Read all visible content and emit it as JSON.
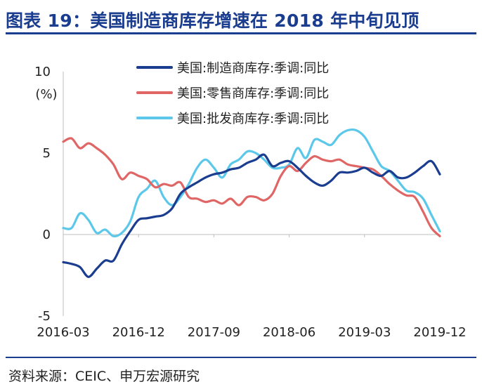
{
  "header": {
    "title": "图表 19：美国制造商库存增速在 2018 年中旬见顶"
  },
  "footer": {
    "source": "资料来源：CEIC、申万宏源研究"
  },
  "colors": {
    "title": "#1b3d8f",
    "rule": "#1b3d8f"
  },
  "chart_data": {
    "type": "line",
    "title": "",
    "ylabel": "(%)",
    "ylim": [
      -5,
      10
    ],
    "yticks": [
      10,
      5,
      0,
      -5
    ],
    "xlim": [
      0,
      45
    ],
    "x_tick_labels": [
      "2016-03",
      "2016-12",
      "2017-09",
      "2018-06",
      "2019-03",
      "2019-12"
    ],
    "x_tick_index": [
      0,
      9,
      18,
      27,
      36,
      45
    ],
    "x_start": "2016-03",
    "x_end": "2019-12",
    "frequency": "monthly",
    "legend_position": "top",
    "series": [
      {
        "name": "美国:制造商库存:季调:同比",
        "color": "#1b3d8f",
        "values": [
          -1.7,
          -1.8,
          -2.0,
          -2.6,
          -2.1,
          -1.6,
          -1.6,
          -0.6,
          0.2,
          0.9,
          1.0,
          1.1,
          1.2,
          1.6,
          2.5,
          2.9,
          3.2,
          3.5,
          3.7,
          3.8,
          4.0,
          4.1,
          4.4,
          4.6,
          4.9,
          4.2,
          4.4,
          4.5,
          4.1,
          3.6,
          3.2,
          3.0,
          3.3,
          3.8,
          3.8,
          3.9,
          4.1,
          3.8,
          3.6,
          3.9,
          3.5,
          3.5,
          3.8,
          4.2,
          4.5,
          3.7
        ]
      },
      {
        "name": "美国:零售商库存:季调:同比",
        "color": "#e06666",
        "values": [
          5.7,
          5.9,
          5.3,
          5.6,
          5.3,
          4.9,
          4.3,
          3.4,
          3.8,
          3.6,
          3.4,
          2.9,
          3.1,
          3.0,
          3.2,
          2.3,
          2.2,
          2.0,
          2.1,
          1.9,
          2.2,
          1.8,
          2.3,
          2.3,
          2.1,
          2.5,
          3.6,
          4.2,
          3.9,
          4.4,
          4.8,
          4.6,
          4.5,
          4.6,
          4.3,
          4.2,
          4.1,
          4.0,
          3.6,
          3.1,
          2.7,
          2.4,
          2.3,
          1.4,
          0.4,
          -0.1
        ]
      },
      {
        "name": "美国:批发商库存:季调:同比",
        "color": "#5bc8ea",
        "values": [
          0.4,
          0.4,
          1.3,
          0.9,
          0.1,
          0.3,
          -0.1,
          0.1,
          0.8,
          2.3,
          2.8,
          3.3,
          2.3,
          1.8,
          2.3,
          3.1,
          4.1,
          4.6,
          4.1,
          3.5,
          4.3,
          4.6,
          5.1,
          5.0,
          4.6,
          4.1,
          4.1,
          4.3,
          5.3,
          4.7,
          5.8,
          5.7,
          5.5,
          6.1,
          6.4,
          6.4,
          6.0,
          5.1,
          4.2,
          3.9,
          3.3,
          2.7,
          2.6,
          2.2,
          1.2,
          0.2
        ]
      }
    ]
  }
}
